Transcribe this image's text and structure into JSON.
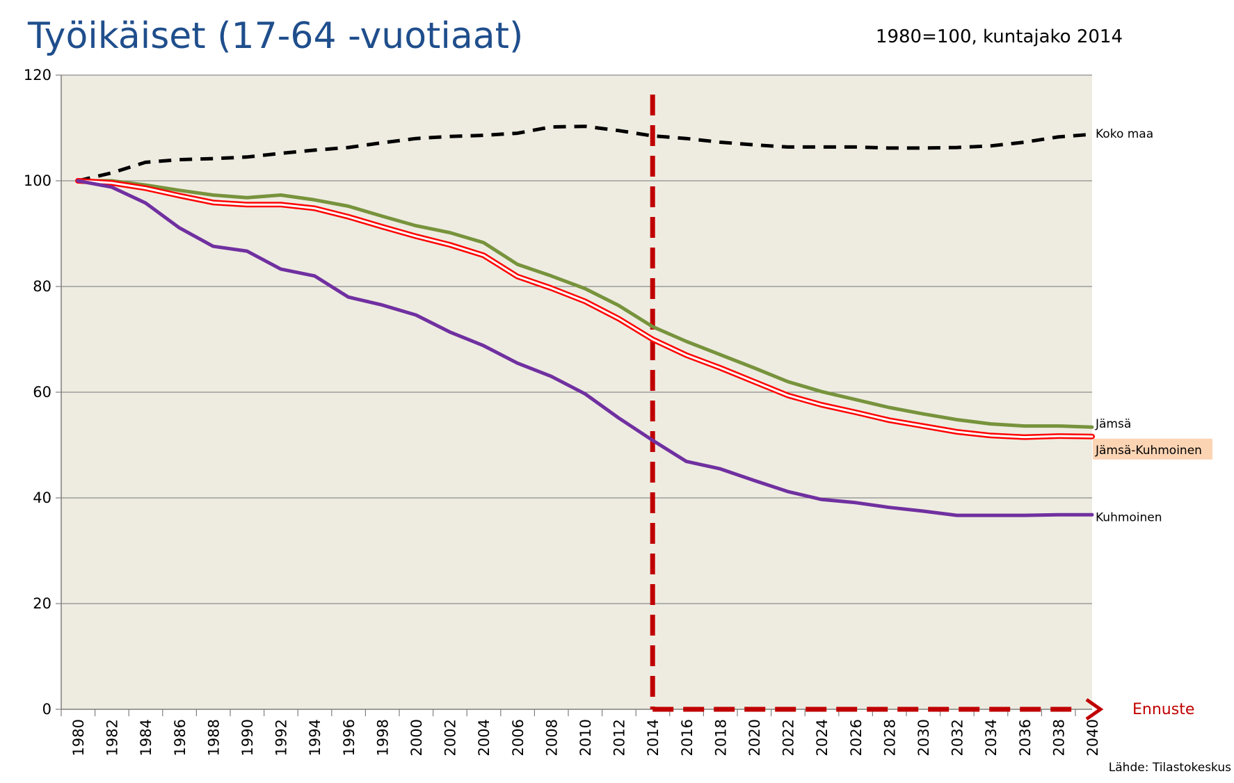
{
  "chart_data": {
    "type": "line",
    "title": "Työikäiset (17-64 -vuotiaat)",
    "subtitle": "1980=100, kuntajako 2014",
    "source": "Lähde: Tilastokeskus",
    "forecast_label": "Ennuste",
    "forecast_start": 2014,
    "xlim": [
      1980,
      2040
    ],
    "ylim": [
      0,
      120
    ],
    "y_ticks": [
      "0",
      "20",
      "40",
      "60",
      "80",
      "100",
      "120"
    ],
    "x_ticks": [
      "1980",
      "1982",
      "1984",
      "1986",
      "1988",
      "1990",
      "1992",
      "1994",
      "1996",
      "1998",
      "2000",
      "2002",
      "2004",
      "2006",
      "2008",
      "2010",
      "2012",
      "2014",
      "2016",
      "2018",
      "2020",
      "2022",
      "2024",
      "2026",
      "2028",
      "2030",
      "2032",
      "2034",
      "2036",
      "2038",
      "2040"
    ],
    "grid": true,
    "x": [
      1980,
      1982,
      1984,
      1986,
      1988,
      1990,
      1992,
      1994,
      1996,
      1998,
      2000,
      2002,
      2004,
      2006,
      2008,
      2010,
      2012,
      2014,
      2016,
      2018,
      2020,
      2022,
      2024,
      2026,
      2028,
      2030,
      2032,
      2034,
      2036,
      2038,
      2040
    ],
    "series": [
      {
        "name": "Koko maa",
        "color": "#000000",
        "style": "dashed",
        "values": [
          100,
          101.5,
          103.5,
          104,
          104.2,
          104.5,
          105.2,
          105.8,
          106.3,
          107.2,
          108,
          108.4,
          108.6,
          109,
          110.2,
          110.3,
          109.5,
          108.5,
          108,
          107.3,
          106.8,
          106.4,
          106.4,
          106.4,
          106.2,
          106.2,
          106.3,
          106.6,
          107.3,
          108.3,
          108.8
        ]
      },
      {
        "name": "Jämsä",
        "color": "#77933c",
        "style": "solid",
        "values": [
          100,
          100,
          99.2,
          98.2,
          97.3,
          96.8,
          97.3,
          96.4,
          95.2,
          93.3,
          91.5,
          90.2,
          88.3,
          84.2,
          82,
          79.6,
          76.4,
          72.4,
          69.6,
          67.1,
          64.6,
          62,
          60.1,
          58.6,
          57.1,
          55.9,
          54.8,
          54,
          53.6,
          53.6,
          53.4
        ]
      },
      {
        "name": "Jämsä-Kuhmoinen",
        "color": "#ff0000",
        "style": "double",
        "values": [
          100,
          99.6,
          98.6,
          97.2,
          95.9,
          95.5,
          95.5,
          94.8,
          93.2,
          91.3,
          89.5,
          87.9,
          85.9,
          81.9,
          79.7,
          77.2,
          73.9,
          70,
          67,
          64.6,
          62,
          59.4,
          57.6,
          56.2,
          54.7,
          53.6,
          52.5,
          51.8,
          51.5,
          51.7,
          51.6
        ]
      },
      {
        "name": "Kuhmoinen",
        "color": "#7030a0",
        "style": "solid",
        "values": [
          100,
          98.8,
          95.8,
          91.1,
          87.6,
          86.7,
          83.3,
          82,
          78,
          76.5,
          74.6,
          71.4,
          68.8,
          65.5,
          63,
          59.7,
          55.1,
          50.9,
          46.9,
          45.5,
          43.3,
          41.2,
          39.7,
          39.1,
          38.2,
          37.5,
          36.7,
          36.7,
          36.7,
          36.8,
          36.8
        ]
      }
    ]
  }
}
